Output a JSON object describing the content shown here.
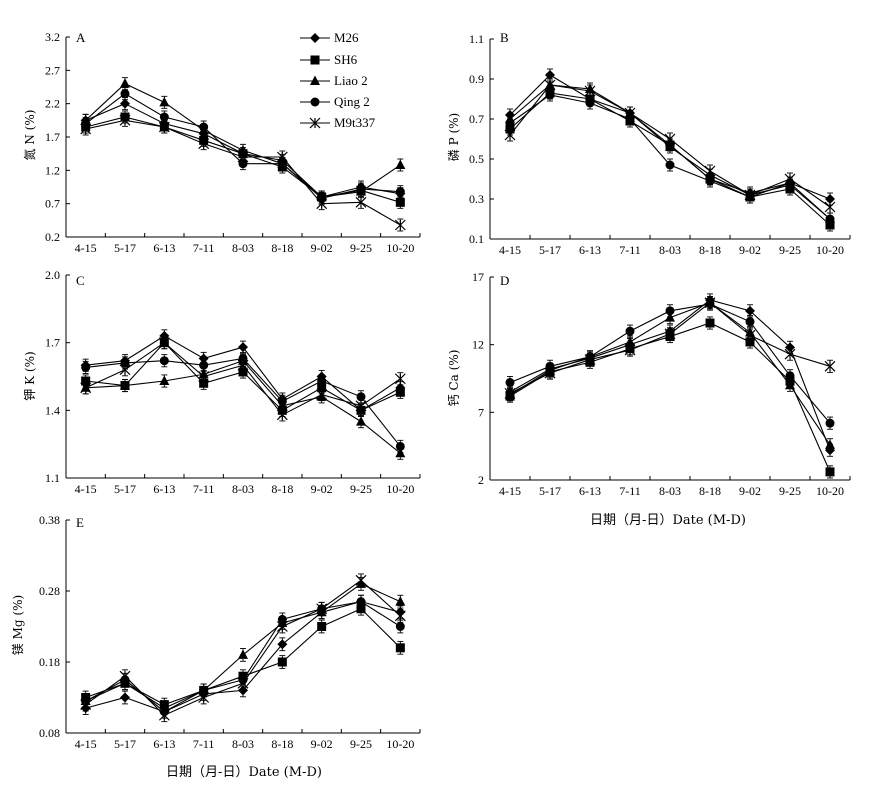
{
  "legend": [
    "M26",
    "SH6",
    "Liao 2",
    "Qing 2",
    "M9t337"
  ],
  "x_axis_label": "日期（月-日）Date (M-D)",
  "chart_data": [
    {
      "type": "line",
      "panel": "A",
      "ylabel": "氮 N (%)",
      "categories": [
        "4-15",
        "5-17",
        "6-13",
        "7-11",
        "8-03",
        "8-18",
        "9-02",
        "9-25",
        "10-20"
      ],
      "ylim": [
        0.2,
        3.2
      ],
      "yticks": [
        "0.2",
        "0.7",
        "1.2",
        "1.7",
        "2.2",
        "2.7",
        "3.2"
      ],
      "series": [
        {
          "name": "M26",
          "marker": "diamond",
          "values": [
            1.95,
            2.2,
            1.9,
            1.75,
            1.45,
            1.35,
            0.8,
            0.95,
            0.85
          ]
        },
        {
          "name": "SH6",
          "marker": "square",
          "values": [
            1.85,
            2.0,
            1.85,
            1.65,
            1.45,
            1.25,
            0.8,
            0.9,
            0.72
          ]
        },
        {
          "name": "Liao 2",
          "marker": "triangle",
          "values": [
            1.95,
            2.5,
            2.22,
            1.8,
            1.5,
            1.3,
            0.8,
            0.88,
            1.28
          ]
        },
        {
          "name": "Qing 2",
          "marker": "circle",
          "values": [
            1.9,
            2.35,
            2.0,
            1.85,
            1.3,
            1.3,
            0.78,
            0.92,
            0.88
          ]
        },
        {
          "name": "M9t337",
          "marker": "asterisk",
          "values": [
            1.82,
            1.95,
            1.85,
            1.6,
            1.4,
            1.4,
            0.7,
            0.72,
            0.38
          ]
        }
      ]
    },
    {
      "type": "line",
      "panel": "B",
      "ylabel": "磷 P (%)",
      "categories": [
        "4-15",
        "5-17",
        "6-13",
        "7-11",
        "8-03",
        "8-18",
        "9-02",
        "9-25",
        "10-20"
      ],
      "ylim": [
        0.1,
        1.1
      ],
      "yticks": [
        "0.1",
        "0.3",
        "0.5",
        "0.7",
        "0.9",
        "1.1"
      ],
      "series": [
        {
          "name": "M26",
          "marker": "diamond",
          "values": [
            0.72,
            0.92,
            0.8,
            0.73,
            0.57,
            0.4,
            0.33,
            0.38,
            0.3
          ]
        },
        {
          "name": "SH6",
          "marker": "square",
          "values": [
            0.65,
            0.83,
            0.8,
            0.69,
            0.57,
            0.4,
            0.31,
            0.35,
            0.17
          ]
        },
        {
          "name": "Liao 2",
          "marker": "triangle",
          "values": [
            0.7,
            0.87,
            0.85,
            0.73,
            0.56,
            0.42,
            0.32,
            0.37,
            0.2
          ]
        },
        {
          "name": "Qing 2",
          "marker": "circle",
          "values": [
            0.68,
            0.82,
            0.78,
            0.7,
            0.47,
            0.39,
            0.31,
            0.38,
            0.2
          ]
        },
        {
          "name": "M9t337",
          "marker": "asterisk",
          "values": [
            0.62,
            0.87,
            0.84,
            0.73,
            0.6,
            0.44,
            0.32,
            0.4,
            0.26
          ]
        }
      ]
    },
    {
      "type": "line",
      "panel": "C",
      "ylabel": "钾 K (%)",
      "categories": [
        "4-15",
        "5-17",
        "6-13",
        "7-11",
        "8-03",
        "8-18",
        "9-02",
        "9-25",
        "10-20"
      ],
      "ylim": [
        1.1,
        2.0
      ],
      "yticks": [
        "1.1",
        "1.4",
        "1.7",
        "2.0"
      ],
      "series": [
        {
          "name": "M26",
          "marker": "diamond",
          "values": [
            1.6,
            1.62,
            1.73,
            1.63,
            1.68,
            1.45,
            1.55,
            1.4,
            1.5
          ]
        },
        {
          "name": "SH6",
          "marker": "square",
          "values": [
            1.53,
            1.51,
            1.7,
            1.52,
            1.57,
            1.4,
            1.5,
            1.4,
            1.48
          ]
        },
        {
          "name": "Liao 2",
          "marker": "triangle",
          "values": [
            1.5,
            1.51,
            1.53,
            1.56,
            1.62,
            1.42,
            1.46,
            1.35,
            1.21
          ]
        },
        {
          "name": "Qing 2",
          "marker": "circle",
          "values": [
            1.59,
            1.61,
            1.62,
            1.6,
            1.63,
            1.44,
            1.53,
            1.46,
            1.24
          ]
        },
        {
          "name": "M9t337",
          "marker": "asterisk",
          "values": [
            1.5,
            1.58,
            1.7,
            1.55,
            1.6,
            1.38,
            1.47,
            1.42,
            1.54
          ]
        }
      ]
    },
    {
      "type": "line",
      "panel": "D",
      "ylabel": "钙 Ca (%)",
      "categories": [
        "4-15",
        "5-17",
        "6-13",
        "7-11",
        "8-03",
        "8-18",
        "9-02",
        "9-25",
        "10-20"
      ],
      "ylim": [
        2,
        17
      ],
      "yticks": [
        "2",
        "7",
        "12",
        "17"
      ],
      "series": [
        {
          "name": "M26",
          "marker": "diamond",
          "values": [
            8.5,
            10.2,
            11.0,
            12.0,
            13.0,
            15.3,
            14.5,
            11.8,
            4.2
          ]
        },
        {
          "name": "SH6",
          "marker": "square",
          "values": [
            8.2,
            10.0,
            10.7,
            11.7,
            12.6,
            13.6,
            12.2,
            9.3,
            2.6
          ]
        },
        {
          "name": "Liao 2",
          "marker": "triangle",
          "values": [
            8.3,
            10.1,
            11.1,
            12.2,
            14.0,
            15.1,
            12.9,
            9.0,
            4.6
          ]
        },
        {
          "name": "Qing 2",
          "marker": "circle",
          "values": [
            9.2,
            10.4,
            11.1,
            13.0,
            14.5,
            15.0,
            13.7,
            9.7,
            6.2
          ]
        },
        {
          "name": "M9t337",
          "marker": "asterisk",
          "values": [
            8.4,
            9.9,
            10.9,
            11.6,
            12.8,
            15.1,
            12.7,
            11.3,
            10.4
          ]
        }
      ]
    },
    {
      "type": "line",
      "panel": "E",
      "ylabel": "镁 Mg (%)",
      "categories": [
        "4-15",
        "5-17",
        "6-13",
        "7-11",
        "8-03",
        "8-18",
        "9-02",
        "9-25",
        "10-20"
      ],
      "ylim": [
        0.08,
        0.38
      ],
      "yticks": [
        "0.08",
        "0.18",
        "0.28",
        "0.38"
      ],
      "series": [
        {
          "name": "M26",
          "marker": "diamond",
          "values": [
            0.115,
            0.13,
            0.11,
            0.135,
            0.14,
            0.205,
            0.25,
            0.265,
            0.25
          ]
        },
        {
          "name": "SH6",
          "marker": "square",
          "values": [
            0.13,
            0.15,
            0.12,
            0.14,
            0.16,
            0.18,
            0.23,
            0.255,
            0.2
          ]
        },
        {
          "name": "Liao 2",
          "marker": "triangle",
          "values": [
            0.125,
            0.15,
            0.115,
            0.14,
            0.19,
            0.235,
            0.25,
            0.29,
            0.265
          ]
        },
        {
          "name": "Qing 2",
          "marker": "circle",
          "values": [
            0.125,
            0.155,
            0.11,
            0.14,
            0.155,
            0.24,
            0.255,
            0.265,
            0.23
          ]
        },
        {
          "name": "M9t337",
          "marker": "asterisk",
          "values": [
            0.12,
            0.16,
            0.105,
            0.13,
            0.15,
            0.23,
            0.255,
            0.295,
            0.245
          ]
        }
      ]
    }
  ]
}
